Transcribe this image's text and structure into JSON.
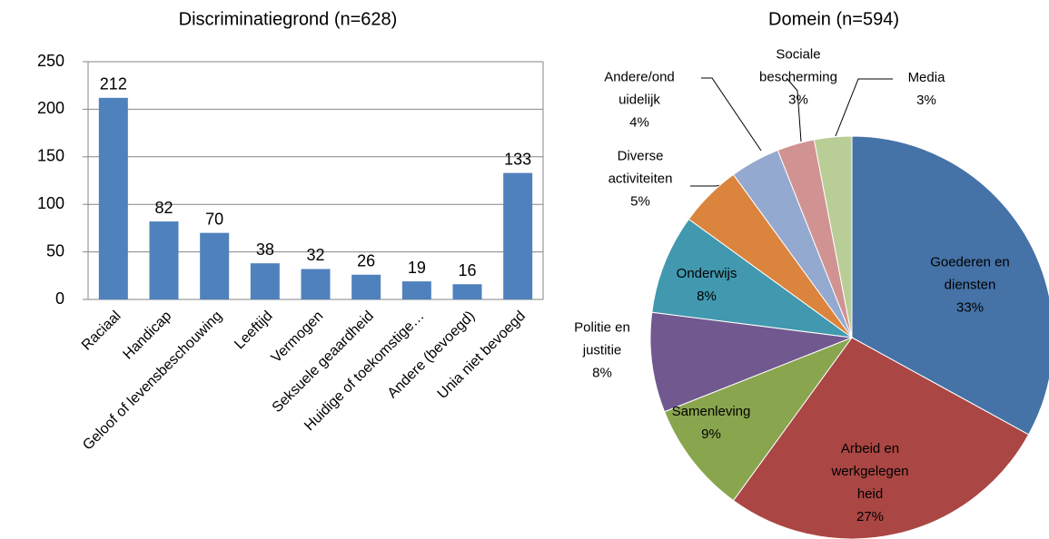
{
  "chart_data": [
    {
      "type": "bar",
      "title": "Discriminatiegrond (n=628)",
      "categories": [
        "Raciaal",
        "Handicap",
        "Geloof of levensbeschouwing",
        "Leeftijd",
        "Vermogen",
        "Seksuele geaardheid",
        "Huidige of toekomstige…",
        "Andere (bevoegd)",
        "Unia niet bevoegd"
      ],
      "values": [
        212,
        82,
        70,
        38,
        32,
        26,
        19,
        16,
        133
      ],
      "color": "#4f81bd",
      "ylim": [
        0,
        250
      ],
      "yticks": [
        0,
        50,
        100,
        150,
        200,
        250
      ],
      "grid": true
    },
    {
      "type": "pie",
      "title": "Domein (n=594)",
      "categories": [
        "Goederen en diensten",
        "Arbeid en werkgelegenheid",
        "Samenleving",
        "Politie en justitie",
        "Onderwijs",
        "Diverse activiteiten",
        "Andere/onduidelijk",
        "Sociale bescherming",
        "Media"
      ],
      "values": [
        33,
        27,
        9,
        8,
        8,
        5,
        4,
        3,
        3
      ],
      "value_labels": [
        "33%",
        "27%",
        "9%",
        "8%",
        "8%",
        "5%",
        "4%",
        "3%",
        "3%"
      ],
      "colors": [
        "#4572a7",
        "#aa4643",
        "#89a54e",
        "#71588f",
        "#4198af",
        "#db843d",
        "#93a9cf",
        "#d19392",
        "#b9cd96"
      ]
    }
  ]
}
